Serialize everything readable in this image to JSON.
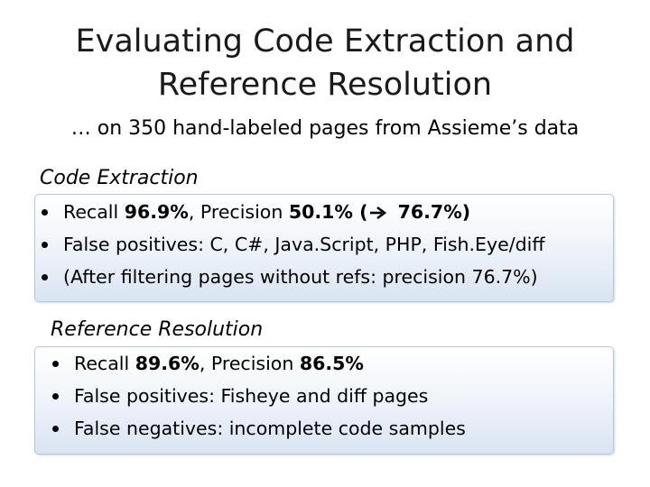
{
  "title": {
    "line1": "Evaluating Code Extraction and",
    "line2": "Reference Resolution"
  },
  "subtitle": "… on 350 hand-labeled pages from Assieme’s data",
  "code_extraction": {
    "heading": "Code Extraction",
    "b1": {
      "recall_label": "Recall ",
      "recall_value": "96.9%",
      "sep": ", Precision ",
      "precision_value": "50.1%",
      "paren_open": " (",
      "improved_value": " 76.7%)"
    },
    "b2": "False positives: C, C#, Java.Script, PHP,  Fish.Eye/diff",
    "b3": "(After filtering pages without refs: precision 76.7%)"
  },
  "reference_resolution": {
    "heading": "Reference Resolution",
    "b1": {
      "recall_label": "Recall ",
      "recall_value": "89.6%",
      "sep": ", Precision ",
      "precision_value": "86.5%"
    },
    "b2": "False positives: Fisheye and diff pages",
    "b3": "False negatives: incomplete code samples"
  }
}
